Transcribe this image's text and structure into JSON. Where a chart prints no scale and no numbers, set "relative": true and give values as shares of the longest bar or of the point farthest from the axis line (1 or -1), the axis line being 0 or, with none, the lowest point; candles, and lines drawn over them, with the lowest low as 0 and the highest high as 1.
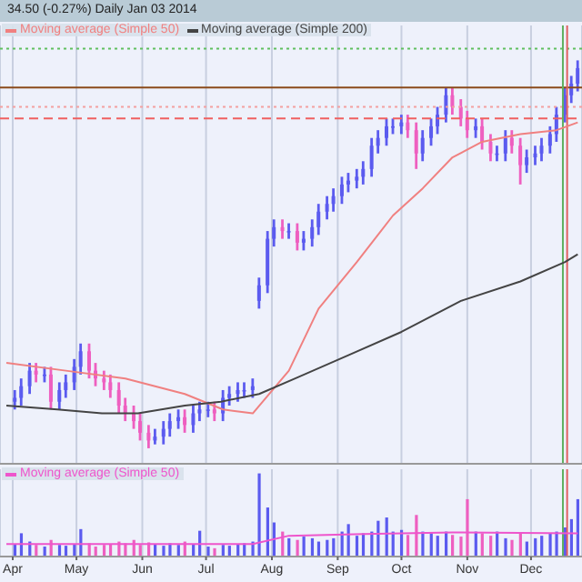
{
  "chart_data": [
    {
      "type": "candlestick",
      "title": "34.50 (-0.27%)  Daily  Jan 03 2014",
      "relative": true,
      "legend": "top left",
      "grid": "x",
      "tick_labels": false,
      "xlim": [
        "--03-26",
        "--12-25"
      ],
      "xticks": [
        {
          "value": "--04-01",
          "label": null
        },
        {
          "value": "--05-01",
          "label": null
        },
        {
          "value": "--06-01",
          "label": null
        },
        {
          "value": "--07-01",
          "label": null
        },
        {
          "value": "--08-01",
          "label": null
        },
        {
          "value": "--09-01",
          "label": null
        },
        {
          "value": "--10-01",
          "label": null
        },
        {
          "value": "--11-01",
          "label": null
        },
        {
          "value": "--12-01",
          "label": null
        }
      ],
      "x": [
        "--04-02",
        "--04-05",
        "--04-09",
        "--04-12",
        "--04-16",
        "--04-19",
        "--04-23",
        "--04-26",
        "--04-30",
        "--05-03",
        "--05-07",
        "--05-10",
        "--05-14",
        "--05-17",
        "--05-21",
        "--05-24",
        "--05-28",
        "--05-31",
        "--06-04",
        "--06-07",
        "--06-11",
        "--06-14",
        "--06-18",
        "--06-21",
        "--06-25",
        "--06-28",
        "--07-02",
        "--07-05",
        "--07-09",
        "--07-12",
        "--07-16",
        "--07-19",
        "--07-23",
        "--07-26",
        "--07-30",
        "--08-02",
        "--08-06",
        "--08-09",
        "--08-13",
        "--08-16",
        "--08-20",
        "--08-23",
        "--08-27",
        "--08-30",
        "--09-03",
        "--09-06",
        "--09-10",
        "--09-13",
        "--09-17",
        "--09-20",
        "--09-24",
        "--09-27",
        "--10-01",
        "--10-04",
        "--10-08",
        "--10-11",
        "--10-15",
        "--10-18",
        "--10-22",
        "--10-25",
        "--10-29",
        "--11-01",
        "--11-05",
        "--11-08",
        "--11-12",
        "--11-15",
        "--11-19",
        "--11-22",
        "--11-26",
        "--11-29",
        "--12-03",
        "--12-06",
        "--12-10",
        "--12-13",
        "--12-17",
        "--12-20",
        "--12-23"
      ],
      "ohlc": [
        [
          0.12,
          0.15,
          0.1,
          0.13
        ],
        [
          0.13,
          0.18,
          0.11,
          0.16
        ],
        [
          0.16,
          0.22,
          0.14,
          0.2
        ],
        [
          0.2,
          0.22,
          0.17,
          0.19
        ],
        [
          0.19,
          0.21,
          0.17,
          0.19
        ],
        [
          0.19,
          0.21,
          0.1,
          0.12
        ],
        [
          0.12,
          0.17,
          0.1,
          0.15
        ],
        [
          0.15,
          0.19,
          0.13,
          0.17
        ],
        [
          0.17,
          0.23,
          0.15,
          0.21
        ],
        [
          0.21,
          0.27,
          0.19,
          0.25
        ],
        [
          0.25,
          0.27,
          0.18,
          0.2
        ],
        [
          0.2,
          0.22,
          0.16,
          0.18
        ],
        [
          0.18,
          0.2,
          0.15,
          0.17
        ],
        [
          0.17,
          0.19,
          0.13,
          0.15
        ],
        [
          0.15,
          0.17,
          0.09,
          0.11
        ],
        [
          0.11,
          0.13,
          0.07,
          0.09
        ],
        [
          0.09,
          0.11,
          0.05,
          0.07
        ],
        [
          0.07,
          0.09,
          0.02,
          0.04
        ],
        [
          0.04,
          0.06,
          0,
          0.02
        ],
        [
          0.02,
          0.05,
          0.01,
          0.03
        ],
        [
          0.03,
          0.07,
          0.01,
          0.05
        ],
        [
          0.05,
          0.09,
          0.03,
          0.07
        ],
        [
          0.07,
          0.1,
          0.05,
          0.08
        ],
        [
          0.08,
          0.1,
          0.04,
          0.06
        ],
        [
          0.06,
          0.11,
          0.04,
          0.09
        ],
        [
          0.09,
          0.12,
          0.07,
          0.1
        ],
        [
          0.1,
          0.12,
          0.08,
          0.1
        ],
        [
          0.1,
          0.12,
          0.07,
          0.09
        ],
        [
          0.09,
          0.15,
          0.07,
          0.13
        ],
        [
          0.13,
          0.16,
          0.11,
          0.14
        ],
        [
          0.14,
          0.17,
          0.12,
          0.15
        ],
        [
          0.15,
          0.17,
          0.13,
          0.15
        ],
        [
          0.15,
          0.18,
          0.13,
          0.16
        ],
        [
          0.38,
          0.44,
          0.36,
          0.42
        ],
        [
          0.42,
          0.56,
          0.4,
          0.54
        ],
        [
          0.54,
          0.59,
          0.52,
          0.57
        ],
        [
          0.57,
          0.59,
          0.54,
          0.56
        ],
        [
          0.56,
          0.58,
          0.54,
          0.56
        ],
        [
          0.56,
          0.58,
          0.51,
          0.53
        ],
        [
          0.53,
          0.56,
          0.51,
          0.54
        ],
        [
          0.54,
          0.59,
          0.52,
          0.57
        ],
        [
          0.57,
          0.63,
          0.55,
          0.61
        ],
        [
          0.61,
          0.65,
          0.59,
          0.63
        ],
        [
          0.63,
          0.67,
          0.61,
          0.65
        ],
        [
          0.65,
          0.7,
          0.63,
          0.68
        ],
        [
          0.68,
          0.71,
          0.66,
          0.69
        ],
        [
          0.69,
          0.72,
          0.67,
          0.7
        ],
        [
          0.7,
          0.74,
          0.68,
          0.72
        ],
        [
          0.72,
          0.8,
          0.7,
          0.78
        ],
        [
          0.78,
          0.82,
          0.76,
          0.8
        ],
        [
          0.8,
          0.85,
          0.78,
          0.83
        ],
        [
          0.83,
          0.85,
          0.81,
          0.83
        ],
        [
          0.83,
          0.86,
          0.81,
          0.84
        ],
        [
          0.84,
          0.86,
          0.8,
          0.82
        ],
        [
          0.82,
          0.84,
          0.72,
          0.76
        ],
        [
          0.76,
          0.82,
          0.74,
          0.8
        ],
        [
          0.8,
          0.85,
          0.78,
          0.83
        ],
        [
          0.83,
          0.88,
          0.81,
          0.86
        ],
        [
          0.86,
          0.93,
          0.84,
          0.91
        ],
        [
          0.91,
          0.93,
          0.86,
          0.88
        ],
        [
          0.88,
          0.9,
          0.83,
          0.85
        ],
        [
          0.85,
          0.87,
          0.8,
          0.82
        ],
        [
          0.82,
          0.85,
          0.8,
          0.83
        ],
        [
          0.83,
          0.85,
          0.77,
          0.79
        ],
        [
          0.79,
          0.81,
          0.74,
          0.76
        ],
        [
          0.76,
          0.78,
          0.74,
          0.76
        ],
        [
          0.76,
          0.82,
          0.74,
          0.8
        ],
        [
          0.8,
          0.82,
          0.76,
          0.78
        ],
        [
          0.78,
          0.8,
          0.68,
          0.73
        ],
        [
          0.73,
          0.77,
          0.71,
          0.75
        ],
        [
          0.75,
          0.78,
          0.73,
          0.76
        ],
        [
          0.76,
          0.8,
          0.74,
          0.78
        ],
        [
          0.78,
          0.83,
          0.76,
          0.81
        ],
        [
          0.81,
          0.88,
          0.79,
          0.86
        ],
        [
          0.86,
          0.93,
          0.84,
          0.91
        ],
        [
          0.91,
          0.96,
          0.89,
          0.94
        ],
        [
          0.94,
          1,
          0.92,
          0.98
        ]
      ],
      "colors": [
        "#5b5bef",
        "#5b5bef",
        "#5b5bef",
        "#ee5fc0",
        "#5b5bef",
        "#ee5fc0",
        "#5b5bef",
        "#5b5bef",
        "#5b5bef",
        "#5b5bef",
        "#ee5fc0",
        "#ee5fc0",
        "#ee5fc0",
        "#ee5fc0",
        "#ee5fc0",
        "#ee5fc0",
        "#ee5fc0",
        "#ee5fc0",
        "#ee5fc0",
        "#5b5bef",
        "#5b5bef",
        "#5b5bef",
        "#5b5bef",
        "#ee5fc0",
        "#5b5bef",
        "#5b5bef",
        "#5b5bef",
        "#ee5fc0",
        "#5b5bef",
        "#5b5bef",
        "#5b5bef",
        "#5b5bef",
        "#5b5bef",
        "#5b5bef",
        "#5b5bef",
        "#5b5bef",
        "#ee5fc0",
        "#5b5bef",
        "#ee5fc0",
        "#5b5bef",
        "#5b5bef",
        "#5b5bef",
        "#5b5bef",
        "#5b5bef",
        "#5b5bef",
        "#5b5bef",
        "#5b5bef",
        "#5b5bef",
        "#5b5bef",
        "#5b5bef",
        "#5b5bef",
        "#5b5bef",
        "#5b5bef",
        "#ee5fc0",
        "#ee5fc0",
        "#5b5bef",
        "#5b5bef",
        "#5b5bef",
        "#5b5bef",
        "#ee5fc0",
        "#ee5fc0",
        "#ee5fc0",
        "#5b5bef",
        "#ee5fc0",
        "#ee5fc0",
        "#5b5bef",
        "#5b5bef",
        "#ee5fc0",
        "#ee5fc0",
        "#5b5bef",
        "#5b5bef",
        "#5b5bef",
        "#5b5bef",
        "#5b5bef",
        "#5b5bef",
        "#5b5bef",
        "#5b5bef"
      ],
      "series": [
        {
          "type": "line",
          "name": "Moving average (Simple 50)",
          "color": "#f08080",
          "x": [
            "--03-29",
            "--04-26",
            "--05-24",
            "--06-21",
            "--07-09",
            "--07-23",
            "--08-09",
            "--08-23",
            "--09-10",
            "--09-27",
            "--10-11",
            "--10-25",
            "--11-08",
            "--11-26",
            "--12-13",
            "--12-23"
          ],
          "values": [
            0.22,
            0.2,
            0.18,
            0.14,
            0.1,
            0.09,
            0.2,
            0.36,
            0.48,
            0.6,
            0.67,
            0.75,
            0.79,
            0.81,
            0.82,
            0.84
          ]
        },
        {
          "type": "line",
          "name": "Moving average (Simple 200)",
          "color": "#444444",
          "x": [
            "--03-29",
            "--04-22",
            "--05-13",
            "--05-30",
            "--06-21",
            "--07-08",
            "--07-26",
            "--08-12",
            "--09-06",
            "--10-01",
            "--10-29",
            "--11-26",
            "--12-17",
            "--12-23"
          ],
          "values": [
            0.11,
            0.1,
            0.09,
            0.09,
            0.11,
            0.12,
            0.14,
            0.18,
            0.24,
            0.3,
            0.38,
            0.43,
            0.48,
            0.5
          ]
        }
      ],
      "ref_lines": [
        {
          "axis": "y",
          "value": 0.93,
          "color": "#8b4a1a",
          "line_style": "solid"
        },
        {
          "axis": "y",
          "value": 0.88,
          "color": "#f4a0a0",
          "line_style": "dotted"
        },
        {
          "axis": "y",
          "value": 0.85,
          "color": "#f06060",
          "line_style": "dashed"
        },
        {
          "axis": "y",
          "value": 1.03,
          "color": "#60c060",
          "line_style": "dotted"
        },
        {
          "axis": "x",
          "value": "--12-16",
          "color": "#60b060",
          "line_style": "solid"
        },
        {
          "axis": "x",
          "value": "--12-18",
          "color": "#e06060",
          "line_style": "solid"
        }
      ]
    },
    {
      "type": "bar",
      "relative": true,
      "grid": "x",
      "legend": "top left",
      "xlim": [
        "--03-26",
        "--12-25"
      ],
      "xticks": [
        {
          "value": "--04-01",
          "label": "Apr"
        },
        {
          "value": "--05-01",
          "label": "May"
        },
        {
          "value": "--06-01",
          "label": "Jun"
        },
        {
          "value": "--07-01",
          "label": "Jul"
        },
        {
          "value": "--08-01",
          "label": "Aug"
        },
        {
          "value": "--09-01",
          "label": "Sep"
        },
        {
          "value": "--10-01",
          "label": "Oct"
        },
        {
          "value": "--11-01",
          "label": "Nov"
        },
        {
          "value": "--12-01",
          "label": "Dec"
        }
      ],
      "x": [
        "--04-02",
        "--04-05",
        "--04-09",
        "--04-12",
        "--04-16",
        "--04-19",
        "--04-23",
        "--04-26",
        "--04-30",
        "--05-03",
        "--05-07",
        "--05-10",
        "--05-14",
        "--05-17",
        "--05-21",
        "--05-24",
        "--05-28",
        "--05-31",
        "--06-04",
        "--06-07",
        "--06-11",
        "--06-14",
        "--06-18",
        "--06-21",
        "--06-25",
        "--06-28",
        "--07-02",
        "--07-05",
        "--07-09",
        "--07-12",
        "--07-16",
        "--07-19",
        "--07-23",
        "--07-26",
        "--07-30",
        "--08-02",
        "--08-06",
        "--08-09",
        "--08-13",
        "--08-16",
        "--08-20",
        "--08-23",
        "--08-27",
        "--08-30",
        "--09-03",
        "--09-06",
        "--09-10",
        "--09-13",
        "--09-17",
        "--09-20",
        "--09-24",
        "--09-27",
        "--10-01",
        "--10-04",
        "--10-08",
        "--10-11",
        "--10-15",
        "--10-18",
        "--10-22",
        "--10-25",
        "--10-29",
        "--11-01",
        "--11-05",
        "--11-08",
        "--11-12",
        "--11-15",
        "--11-19",
        "--11-22",
        "--11-26",
        "--11-29",
        "--12-03",
        "--12-06",
        "--12-10",
        "--12-13",
        "--12-17",
        "--12-20",
        "--12-23"
      ],
      "series": [
        {
          "type": "bar",
          "values": [
            0.15,
            0.28,
            0.18,
            0.14,
            0.12,
            0.2,
            0.14,
            0.13,
            0.15,
            0.33,
            0.16,
            0.12,
            0.14,
            0.15,
            0.18,
            0.16,
            0.2,
            0.14,
            0.17,
            0.15,
            0.13,
            0.16,
            0.14,
            0.18,
            0.15,
            0.31,
            0.12,
            0.1,
            0.14,
            0.13,
            0.15,
            0.16,
            0.18,
            1,
            0.59,
            0.41,
            0.3,
            0.22,
            0.2,
            0.24,
            0.22,
            0.18,
            0.2,
            0.22,
            0.3,
            0.39,
            0.25,
            0.28,
            0.3,
            0.43,
            0.47,
            0.3,
            0.32,
            0.26,
            0.5,
            0.3,
            0.28,
            0.25,
            0.3,
            0.26,
            0.24,
            0.69,
            0.3,
            0.28,
            0.25,
            0.3,
            0.22,
            0.2,
            0.28,
            0.18,
            0.22,
            0.25,
            0.28,
            0.3,
            0.35,
            0.45,
            0.69
          ],
          "colors": [
            "#5b5bef",
            "#5b5bef",
            "#5b5bef",
            "#ee5fc0",
            "#5b5bef",
            "#ee5fc0",
            "#5b5bef",
            "#5b5bef",
            "#5b5bef",
            "#5b5bef",
            "#ee5fc0",
            "#ee5fc0",
            "#ee5fc0",
            "#ee5fc0",
            "#ee5fc0",
            "#ee5fc0",
            "#ee5fc0",
            "#ee5fc0",
            "#ee5fc0",
            "#5b5bef",
            "#5b5bef",
            "#5b5bef",
            "#5b5bef",
            "#ee5fc0",
            "#5b5bef",
            "#5b5bef",
            "#5b5bef",
            "#ee5fc0",
            "#5b5bef",
            "#5b5bef",
            "#5b5bef",
            "#5b5bef",
            "#5b5bef",
            "#5b5bef",
            "#5b5bef",
            "#5b5bef",
            "#ee5fc0",
            "#5b5bef",
            "#ee5fc0",
            "#5b5bef",
            "#5b5bef",
            "#5b5bef",
            "#5b5bef",
            "#5b5bef",
            "#5b5bef",
            "#5b5bef",
            "#5b5bef",
            "#5b5bef",
            "#5b5bef",
            "#5b5bef",
            "#5b5bef",
            "#5b5bef",
            "#5b5bef",
            "#ee5fc0",
            "#ee5fc0",
            "#5b5bef",
            "#5b5bef",
            "#5b5bef",
            "#5b5bef",
            "#ee5fc0",
            "#ee5fc0",
            "#ee5fc0",
            "#5b5bef",
            "#ee5fc0",
            "#ee5fc0",
            "#5b5bef",
            "#5b5bef",
            "#ee5fc0",
            "#ee5fc0",
            "#5b5bef",
            "#5b5bef",
            "#5b5bef",
            "#5b5bef",
            "#5b5bef",
            "#5b5bef",
            "#5b5bef",
            "#5b5bef"
          ]
        },
        {
          "type": "line",
          "name": "Moving average (Simple 50)",
          "color": "#ee55cc",
          "x": [
            "--03-29",
            "--07-23",
            "--08-09",
            "--09-13",
            "--10-25",
            "--12-23"
          ],
          "values": [
            0.15,
            0.15,
            0.25,
            0.27,
            0.29,
            0.28
          ]
        }
      ],
      "ref_lines": [
        {
          "axis": "x",
          "value": "--12-16",
          "color": "#60b060",
          "line_style": "solid"
        },
        {
          "axis": "x",
          "value": "--12-18",
          "color": "#e06060",
          "line_style": "solid"
        }
      ]
    }
  ]
}
